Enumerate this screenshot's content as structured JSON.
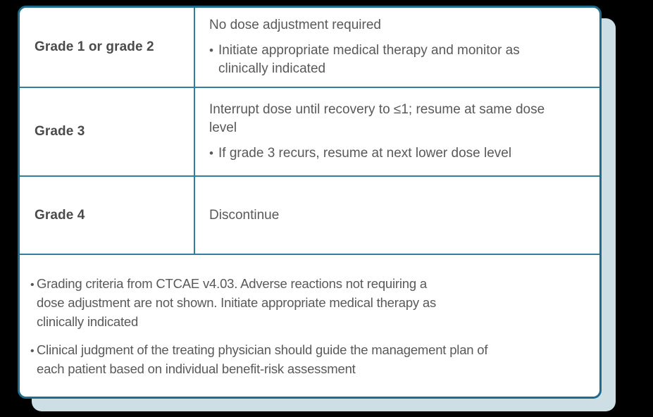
{
  "colors": {
    "background": "#000000",
    "card_background": "#ffffff",
    "card_border": "#1c6c8a",
    "divider": "#2f7f9d",
    "shadow": "#cddee5",
    "text": "#59595b",
    "label_text": "#4b4b4d"
  },
  "bullet_char": "•",
  "table": {
    "rows": [
      {
        "grade": "Grade 1 or grade 2",
        "action": "No dose adjustment required",
        "bullets": [
          "Initiate appropriate medical therapy and monitor as clinically indicated"
        ]
      },
      {
        "grade": "Grade 3",
        "action": "Interrupt dose until recovery to ≤1; resume at same dose level",
        "bullets": [
          "If grade 3 recurs, resume at next lower dose level"
        ]
      },
      {
        "grade": "Grade 4",
        "action": "Discontinue",
        "bullets": []
      }
    ]
  },
  "footnotes": [
    {
      "lines": [
        "Grading criteria from CTCAE v4.03. Adverse reactions not requiring a",
        "dose adjustment are not shown. Initiate appropriate medical therapy as",
        "clinically indicated"
      ]
    },
    {
      "lines": [
        "Clinical judgment of the treating physician should guide the management plan of",
        "each patient based on individual benefit-risk assessment"
      ]
    }
  ]
}
